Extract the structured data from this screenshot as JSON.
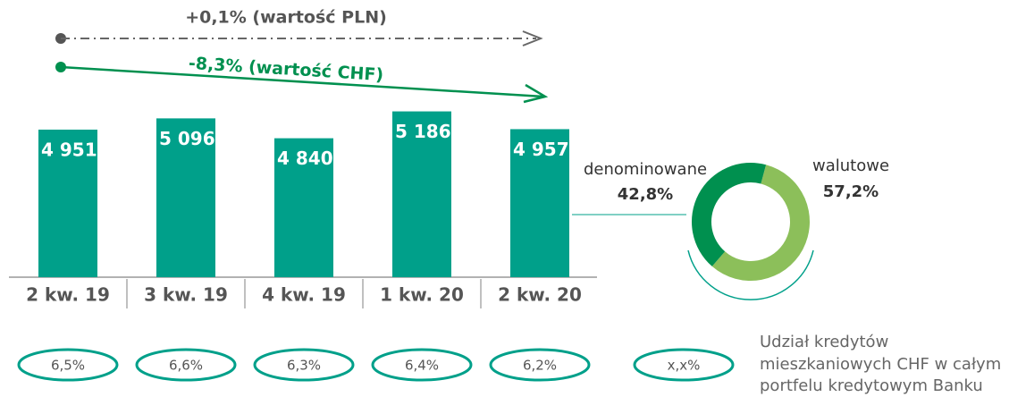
{
  "chart_data": [
    {
      "type": "bar",
      "categories": [
        "2 kw. 19",
        "3 kw. 19",
        "4 kw. 19",
        "1 kw. 20",
        "2 kw. 20"
      ],
      "values": [
        4951,
        5096,
        4840,
        5186,
        4957
      ],
      "value_labels": [
        "4 951",
        "5 096",
        "4 840",
        "5 186",
        "4 957"
      ],
      "color": "#00a08a",
      "ylim": [
        3050,
        5400
      ],
      "annotations": [
        "+0,1% (wartość PLN)",
        "-8,3% (wartość CHF)"
      ],
      "share_values": [
        6.5,
        6.6,
        6.3,
        6.4,
        6.2
      ],
      "share_labels": [
        "6,5%",
        "6,6%",
        "6,3%",
        "6,4%",
        "6,2%"
      ],
      "share_legend_symbol": "x,x%",
      "share_legend_text": [
        "Udział kredytów",
        "mieszkaniowych CHF w całym",
        "portfelu kredytowym Banku"
      ]
    },
    {
      "type": "pie",
      "categories": [
        "denominowane",
        "walutowe"
      ],
      "values": [
        42.8,
        57.2
      ],
      "value_labels": [
        "42,8%",
        "57,2%"
      ],
      "colors": [
        "#00904f",
        "#8cbf5a"
      ]
    }
  ]
}
